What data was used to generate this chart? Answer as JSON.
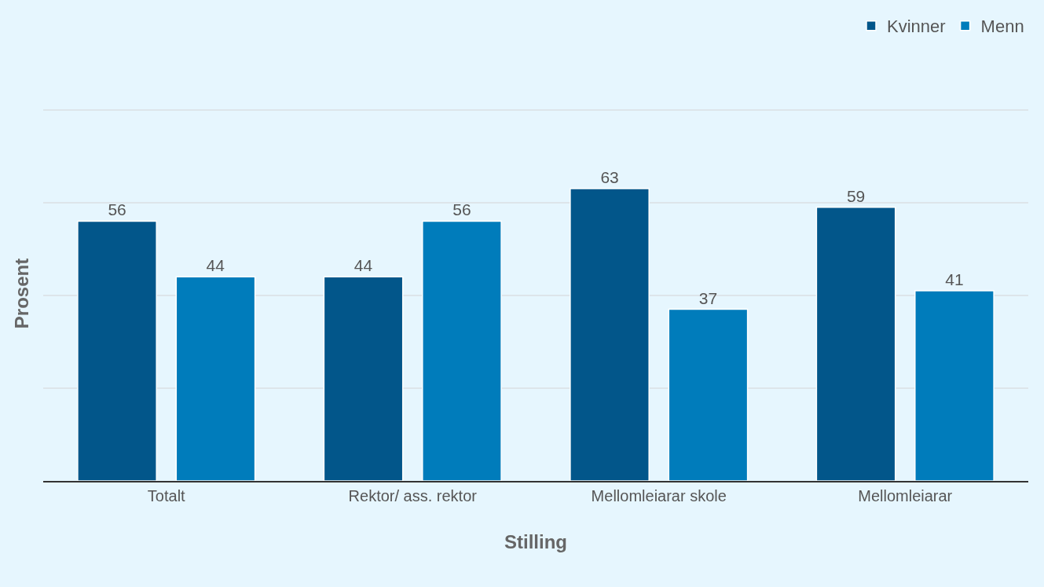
{
  "chart_data": {
    "type": "bar",
    "xlabel": "Stilling",
    "ylabel": "Prosent",
    "categories": [
      "Totalt",
      "Rektor/ ass. rektor",
      "Mellomleiarar skole",
      "Mellomleiarar"
    ],
    "series": [
      {
        "name": "Kvinner",
        "color": "#02568a",
        "values": [
          56,
          44,
          63,
          59
        ]
      },
      {
        "name": "Menn",
        "color": "#007cbb",
        "values": [
          44,
          56,
          37,
          41
        ]
      }
    ],
    "yticks": [
      {
        "value": 0,
        "label": null
      },
      {
        "value": 20,
        "label": null
      },
      {
        "value": 40,
        "label": null
      },
      {
        "value": 60,
        "label": null
      },
      {
        "value": 80,
        "label": null
      }
    ],
    "tick_labels": "x",
    "grid": "y",
    "legend": "top right",
    "data_labels": true
  }
}
